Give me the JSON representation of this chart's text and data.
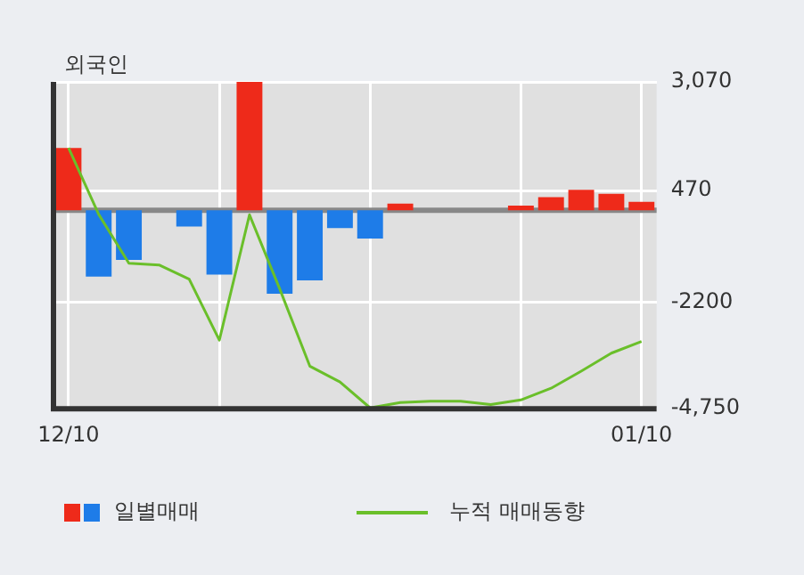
{
  "chart_data": {
    "type": "bar",
    "title": "외국인",
    "categories": [
      "12/10",
      null,
      null,
      null,
      null,
      null,
      null,
      null,
      null,
      null,
      null,
      null,
      null,
      null,
      null,
      null,
      null,
      null,
      null,
      "01/10"
    ],
    "series": [
      {
        "name": "일별매매",
        "values": [
          1490,
          -1590,
          -1190,
          0,
          -390,
          -1540,
          3070,
          -2000,
          -1680,
          -430,
          -680,
          160,
          0,
          0,
          0,
          110,
          310,
          490,
          390,
          200
        ],
        "colors": [
          "#ee2a1a",
          "#1e7ce8",
          "#1e7ce8",
          "#1e7ce8",
          "#1e7ce8",
          "#1e7ce8",
          "#ee2a1a",
          "#1e7ce8",
          "#1e7ce8",
          "#1e7ce8",
          "#1e7ce8",
          "#ee2a1a",
          "#ee2a1a",
          "#ee2a1a",
          "#ee2a1a",
          "#ee2a1a",
          "#ee2a1a",
          "#ee2a1a",
          "#ee2a1a",
          "#ee2a1a"
        ]
      },
      {
        "name": "누적 매매동향",
        "type": "line",
        "color": "#6abf2a",
        "values": [
          1490,
          -100,
          -1270,
          -1310,
          -1650,
          -3110,
          -110,
          -1880,
          -3730,
          -4110,
          -4730,
          -4600,
          -4570,
          -4570,
          -4650,
          -4540,
          -4260,
          -3850,
          -3420,
          -3140
        ]
      }
    ],
    "ylim": [
      -4750,
      3070
    ],
    "yticks": [
      {
        "value": 3070,
        "label": "3,070"
      },
      470,
      -2200,
      {
        "value": -4750,
        "label": "-4,750"
      }
    ],
    "ref_lines": [
      {
        "axis": "y",
        "value": 0,
        "color": "#888888"
      }
    ],
    "grid": true,
    "legend": "bottom",
    "marker": "none",
    "line_style": "solid"
  }
}
